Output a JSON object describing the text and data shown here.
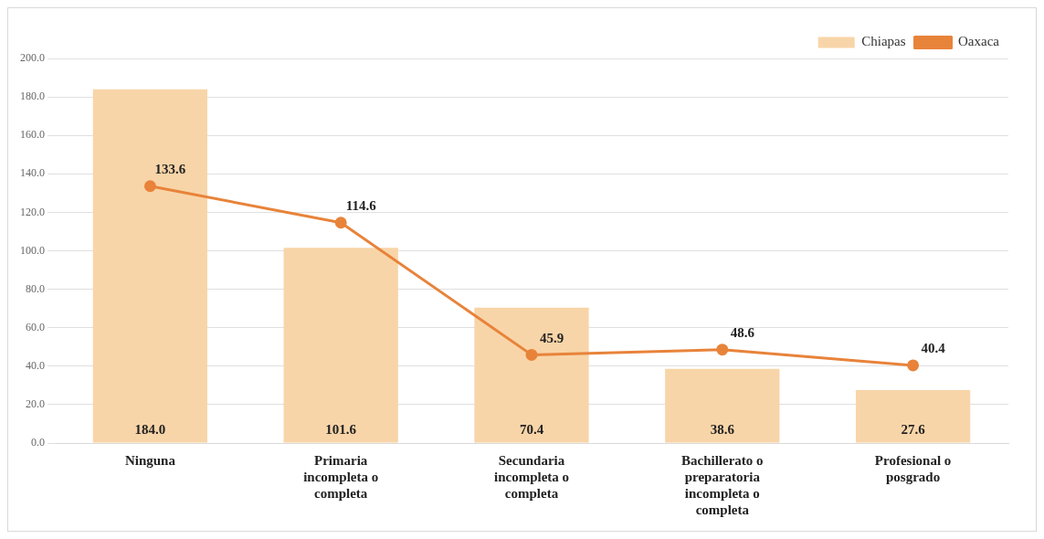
{
  "chart_data": {
    "type": "bar",
    "categories": [
      "Ninguna",
      "Primaria incompleta o completa",
      "Secundaria incompleta o completa",
      "Bachillerato o preparatoria incompleta o completa",
      "Profesional o posgrado"
    ],
    "series": [
      {
        "name": "Chiapas",
        "color": "#f8d5a8",
        "values": [
          184.0,
          101.6,
          70.4,
          38.6,
          27.6
        ],
        "value_labels": [
          "184.0",
          "101.6",
          "70.4",
          "38.6",
          "27.6"
        ]
      },
      {
        "name": "Oaxaca",
        "type": "line",
        "color": "#e8833a",
        "values": [
          133.6,
          114.6,
          45.9,
          48.6,
          40.4
        ],
        "value_labels": [
          "133.6",
          "114.6",
          "45.9",
          "48.6",
          "40.4"
        ]
      }
    ],
    "ylim": [
      0,
      200
    ],
    "yticks": [
      {
        "value": 0,
        "label": "0.0"
      },
      {
        "value": 20,
        "label": "20.0"
      },
      {
        "value": 40,
        "label": "40.0"
      },
      {
        "value": 60,
        "label": "60.0"
      },
      {
        "value": 80,
        "label": "80.0"
      },
      {
        "value": 100,
        "label": "100.0"
      },
      {
        "value": 120,
        "label": "120.0"
      },
      {
        "value": 140,
        "label": "140.0"
      },
      {
        "value": 160,
        "label": "160.0"
      },
      {
        "value": 180,
        "label": "180.0"
      },
      {
        "value": 200,
        "label": "200.0"
      }
    ],
    "grid": "y",
    "legend": "top right",
    "marker": "circle",
    "line_style": "solid"
  }
}
